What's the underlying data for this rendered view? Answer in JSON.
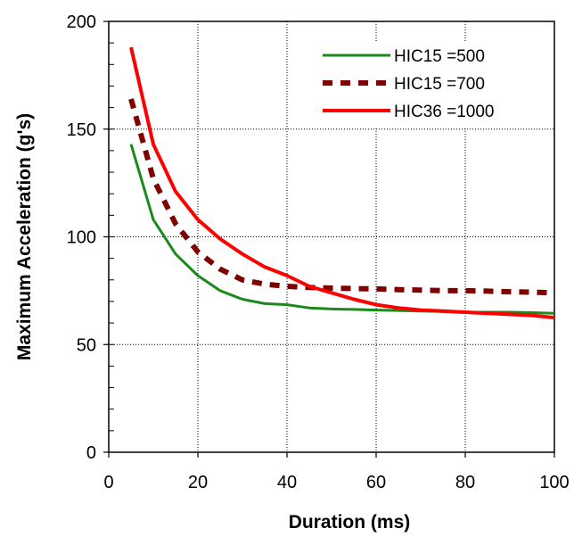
{
  "chart_data": {
    "type": "line",
    "title": "",
    "xlabel": "Duration (ms)",
    "ylabel": "Maximum Acceleration (g's)",
    "xlim": [
      0,
      100
    ],
    "ylim": [
      0,
      200
    ],
    "x_ticks": [
      0,
      20,
      40,
      60,
      80,
      100
    ],
    "y_ticks": [
      0,
      50,
      100,
      150,
      200
    ],
    "grid": true,
    "legend_position": "top-right",
    "series": [
      {
        "name": "HIC15 =500",
        "color": "#1a8a1a",
        "style": "solid",
        "x": [
          5,
          10,
          15,
          20,
          25,
          30,
          35,
          40,
          45,
          50,
          55,
          60,
          65,
          70,
          75,
          80,
          85,
          90,
          95,
          100
        ],
        "y": [
          143,
          108,
          92,
          82,
          75,
          71,
          69,
          68.5,
          67,
          66.5,
          66.3,
          66,
          65.8,
          65.5,
          65.3,
          65,
          65,
          65,
          64.8,
          64.5
        ]
      },
      {
        "name": "HIC15 =700",
        "color": "#800000",
        "style": "dashed",
        "x": [
          5,
          10,
          15,
          20,
          25,
          30,
          35,
          40,
          45,
          50,
          55,
          60,
          65,
          70,
          75,
          80,
          85,
          90,
          95,
          100
        ],
        "y": [
          164,
          127,
          106,
          93,
          85,
          80,
          78,
          77,
          76.5,
          76.2,
          76,
          75.8,
          75.5,
          75.3,
          75,
          75,
          74.8,
          74.5,
          74.3,
          74
        ]
      },
      {
        "name": "HIC36 =1000",
        "color": "#ff0000",
        "style": "solid",
        "x": [
          5,
          10,
          15,
          20,
          25,
          30,
          35,
          40,
          45,
          50,
          55,
          60,
          65,
          70,
          75,
          80,
          85,
          90,
          95,
          100
        ],
        "y": [
          188,
          143,
          121,
          108,
          99,
          92,
          86,
          82,
          77,
          74,
          71,
          68.5,
          67,
          66,
          65.5,
          65,
          64.5,
          64,
          63.5,
          62.5
        ]
      }
    ]
  }
}
